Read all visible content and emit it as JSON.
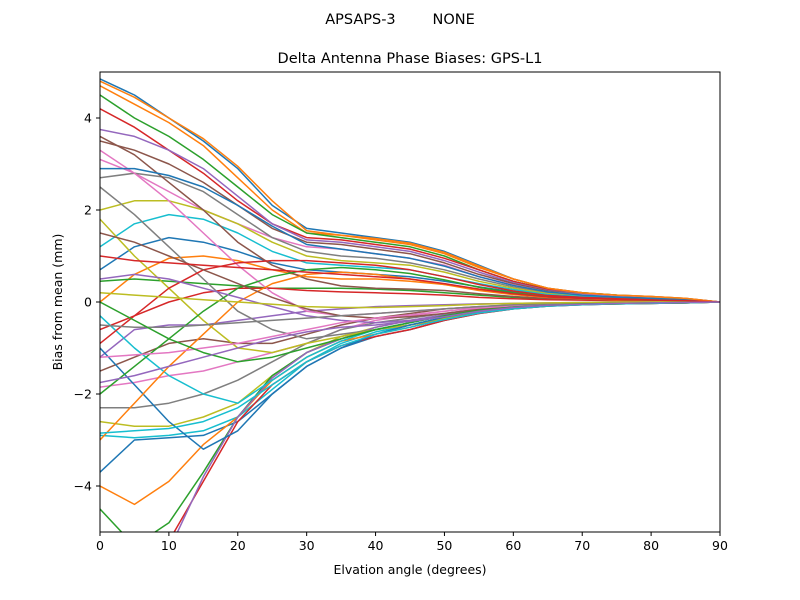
{
  "figure": {
    "suptitle": "APSAPS-3        NONE"
  },
  "chart_data": {
    "type": "line",
    "title": "Delta Antenna Phase Biases: GPS-L1",
    "xlabel": "Elvation angle (degrees)",
    "ylabel": "Bias from mean (mm)",
    "xlim": [
      0,
      90
    ],
    "ylim": [
      -5,
      5
    ],
    "x_ticks": [
      0,
      10,
      20,
      30,
      40,
      50,
      60,
      70,
      80,
      90
    ],
    "y_ticks": [
      -4,
      -2,
      0,
      2,
      4
    ],
    "x_tick_labels": [
      "0",
      "10",
      "20",
      "30",
      "40",
      "50",
      "60",
      "70",
      "80",
      "90"
    ],
    "y_tick_labels": [
      "−4",
      "−2",
      "0",
      "2",
      "4"
    ],
    "grid": false,
    "legend": "none",
    "colors": [
      "#1f77b4",
      "#ff7f0e",
      "#2ca02c",
      "#d62728",
      "#9467bd",
      "#8c564b",
      "#e377c2",
      "#7f7f7f",
      "#bcbd22",
      "#17becf"
    ],
    "x": [
      0,
      5,
      10,
      15,
      20,
      25,
      30,
      35,
      40,
      45,
      50,
      55,
      60,
      65,
      70,
      75,
      80,
      85,
      90
    ],
    "series": [
      {
        "values": [
          4.85,
          4.5,
          4.0,
          3.5,
          2.9,
          2.1,
          1.6,
          1.5,
          1.4,
          1.3,
          1.1,
          0.8,
          0.5,
          0.3,
          0.2,
          0.15,
          0.12,
          0.08,
          0
        ]
      },
      {
        "values": [
          4.7,
          4.3,
          3.9,
          3.4,
          2.7,
          2.0,
          1.5,
          1.45,
          1.35,
          1.25,
          1.05,
          0.75,
          0.5,
          0.3,
          0.2,
          0.15,
          0.12,
          0.08,
          0
        ]
      },
      {
        "values": [
          4.5,
          4.0,
          3.6,
          3.1,
          2.5,
          1.9,
          1.5,
          1.4,
          1.3,
          1.2,
          1.0,
          0.7,
          0.45,
          0.28,
          0.2,
          0.15,
          0.1,
          0.07,
          0
        ]
      },
      {
        "values": [
          4.2,
          3.8,
          3.3,
          2.8,
          2.2,
          1.7,
          1.4,
          1.35,
          1.25,
          1.15,
          0.95,
          0.7,
          0.45,
          0.27,
          0.18,
          0.14,
          0.1,
          0.07,
          0
        ]
      },
      {
        "values": [
          3.75,
          3.6,
          3.3,
          2.9,
          2.3,
          1.7,
          1.35,
          1.3,
          1.2,
          1.1,
          0.9,
          0.65,
          0.42,
          0.25,
          0.18,
          0.13,
          0.1,
          0.07,
          0
        ]
      },
      {
        "values": [
          3.5,
          3.3,
          3.0,
          2.6,
          2.1,
          1.6,
          1.3,
          1.25,
          1.15,
          1.05,
          0.85,
          0.6,
          0.4,
          0.24,
          0.17,
          0.13,
          0.1,
          0.06,
          0
        ]
      },
      {
        "values": [
          3.1,
          2.8,
          2.4,
          2.0,
          1.7,
          1.4,
          1.2,
          1.15,
          1.05,
          0.95,
          0.8,
          0.55,
          0.37,
          0.22,
          0.16,
          0.12,
          0.09,
          0.06,
          0
        ]
      },
      {
        "values": [
          2.7,
          2.8,
          2.7,
          2.4,
          1.9,
          1.4,
          1.1,
          1.0,
          0.95,
          0.85,
          0.7,
          0.5,
          0.33,
          0.2,
          0.14,
          0.11,
          0.08,
          0.05,
          0
        ]
      },
      {
        "values": [
          2.0,
          2.2,
          2.2,
          2.0,
          1.7,
          1.3,
          1.0,
          0.9,
          0.85,
          0.8,
          0.65,
          0.45,
          0.3,
          0.18,
          0.13,
          0.1,
          0.08,
          0.05,
          0
        ]
      },
      {
        "values": [
          1.2,
          1.7,
          1.9,
          1.8,
          1.5,
          1.1,
          0.85,
          0.8,
          0.75,
          0.7,
          0.55,
          0.4,
          0.27,
          0.16,
          0.12,
          0.09,
          0.07,
          0.05,
          0
        ]
      },
      {
        "values": [
          0.7,
          1.2,
          1.4,
          1.3,
          1.1,
          0.85,
          0.7,
          0.65,
          0.6,
          0.55,
          0.45,
          0.33,
          0.22,
          0.14,
          0.1,
          0.08,
          0.06,
          0.04,
          0
        ]
      },
      {
        "values": [
          0.0,
          0.6,
          0.95,
          1.0,
          0.9,
          0.7,
          0.55,
          0.5,
          0.5,
          0.45,
          0.38,
          0.28,
          0.2,
          0.12,
          0.09,
          0.07,
          0.05,
          0.03,
          0
        ]
      },
      {
        "values": [
          0.45,
          0.5,
          0.45,
          0.4,
          0.35,
          0.3,
          0.3,
          0.3,
          0.28,
          0.25,
          0.2,
          0.15,
          0.1,
          0.07,
          0.05,
          0.04,
          0.03,
          0.02,
          0
        ]
      },
      {
        "values": [
          -0.6,
          -0.3,
          0.0,
          0.2,
          0.3,
          0.3,
          0.25,
          0.22,
          0.2,
          0.18,
          0.15,
          0.1,
          0.07,
          0.05,
          0.04,
          0.03,
          0.02,
          0.01,
          0
        ]
      },
      {
        "values": [
          -1.2,
          -0.6,
          -0.5,
          -0.5,
          -0.4,
          -0.3,
          -0.2,
          -0.15,
          -0.1,
          -0.08,
          -0.06,
          -0.04,
          -0.03,
          -0.02,
          -0.01,
          0.0,
          0.0,
          0.0,
          0
        ]
      },
      {
        "values": [
          -1.5,
          -1.2,
          -0.9,
          -0.8,
          -0.9,
          -0.9,
          -0.7,
          -0.5,
          -0.35,
          -0.25,
          -0.15,
          -0.1,
          -0.07,
          -0.05,
          -0.03,
          -0.02,
          -0.01,
          0.0,
          0
        ]
      },
      {
        "values": [
          -1.85,
          -1.75,
          -1.6,
          -1.5,
          -1.3,
          -1.1,
          -0.9,
          -0.6,
          -0.4,
          -0.3,
          -0.2,
          -0.12,
          -0.08,
          -0.05,
          -0.03,
          -0.02,
          -0.01,
          0.0,
          0
        ]
      },
      {
        "values": [
          -2.3,
          -2.3,
          -2.2,
          -2.0,
          -1.7,
          -1.3,
          -0.9,
          -0.6,
          -0.45,
          -0.35,
          -0.25,
          -0.15,
          -0.1,
          -0.06,
          -0.04,
          -0.03,
          -0.02,
          -0.01,
          0
        ]
      },
      {
        "values": [
          -2.6,
          -2.7,
          -2.7,
          -2.5,
          -2.2,
          -1.6,
          -1.1,
          -0.75,
          -0.55,
          -0.4,
          -0.3,
          -0.18,
          -0.12,
          -0.07,
          -0.05,
          -0.03,
          -0.02,
          -0.01,
          0
        ]
      },
      {
        "values": [
          -2.9,
          -2.95,
          -2.9,
          -2.8,
          -2.5,
          -1.9,
          -1.3,
          -0.9,
          -0.65,
          -0.5,
          -0.35,
          -0.2,
          -0.13,
          -0.08,
          -0.05,
          -0.04,
          -0.03,
          -0.02,
          0
        ]
      },
      {
        "values": [
          -3.7,
          -3.0,
          -2.95,
          -2.9,
          -2.6,
          -2.0,
          -1.4,
          -1.0,
          -0.75,
          -0.6,
          -0.4,
          -0.25,
          -0.15,
          -0.09,
          -0.06,
          -0.04,
          -0.03,
          -0.02,
          0
        ]
      },
      {
        "values": [
          -4.0,
          -4.4,
          -3.9,
          -3.1,
          -2.5,
          -1.7,
          -1.2,
          -0.85,
          -0.7,
          -0.55,
          -0.35,
          -0.22,
          -0.14,
          -0.08,
          -0.05,
          -0.04,
          -0.03,
          -0.02,
          0
        ]
      },
      {
        "values": [
          -4.5,
          -5.3,
          -4.8,
          -3.7,
          -2.5,
          -1.6,
          -1.1,
          -0.8,
          -0.6,
          -0.45,
          -0.3,
          -0.2,
          -0.12,
          -0.07,
          -0.05,
          -0.04,
          -0.03,
          -0.02,
          0
        ]
      },
      {
        "values": [
          -5.3,
          -5.6,
          -5.2,
          -3.9,
          -2.6,
          -1.8,
          -1.3,
          -0.95,
          -0.75,
          -0.6,
          -0.4,
          -0.25,
          -0.15,
          -0.09,
          -0.06,
          -0.04,
          -0.03,
          -0.02,
          0
        ]
      },
      {
        "values": [
          -6.0,
          -6.1,
          -5.4,
          -3.8,
          -2.5,
          -1.65,
          -1.1,
          -0.8,
          -0.55,
          -0.4,
          -0.28,
          -0.18,
          -0.11,
          -0.07,
          -0.05,
          -0.03,
          -0.02,
          -0.01,
          0
        ]
      },
      {
        "values": [
          3.6,
          3.2,
          2.6,
          2.0,
          1.3,
          0.8,
          0.5,
          0.35,
          0.3,
          0.28,
          0.25,
          0.18,
          0.12,
          0.08,
          0.06,
          0.05,
          0.04,
          0.02,
          0
        ]
      },
      {
        "values": [
          3.3,
          2.8,
          2.2,
          1.5,
          0.8,
          0.2,
          -0.2,
          -0.3,
          -0.25,
          -0.2,
          -0.15,
          -0.1,
          -0.07,
          -0.04,
          -0.02,
          -0.01,
          0.0,
          0.0,
          0
        ]
      },
      {
        "values": [
          2.5,
          1.9,
          1.2,
          0.5,
          -0.2,
          -0.6,
          -0.8,
          -0.7,
          -0.6,
          -0.5,
          -0.35,
          -0.22,
          -0.14,
          -0.08,
          -0.05,
          -0.03,
          -0.02,
          -0.01,
          0
        ]
      },
      {
        "values": [
          1.8,
          1.0,
          0.3,
          -0.4,
          -1.0,
          -1.1,
          -0.9,
          -0.75,
          -0.6,
          -0.5,
          -0.35,
          -0.2,
          -0.13,
          -0.08,
          -0.05,
          -0.03,
          -0.02,
          -0.01,
          0
        ]
      },
      {
        "values": [
          -0.3,
          -1.0,
          -1.6,
          -2.0,
          -2.2,
          -1.7,
          -1.2,
          -0.85,
          -0.6,
          -0.45,
          -0.3,
          -0.18,
          -0.11,
          -0.07,
          -0.04,
          -0.03,
          -0.02,
          -0.01,
          0
        ]
      },
      {
        "values": [
          -1.0,
          -1.8,
          -2.6,
          -3.2,
          -2.8,
          -2.0,
          -1.4,
          -1.0,
          -0.7,
          -0.5,
          -0.33,
          -0.2,
          -0.12,
          -0.07,
          -0.05,
          -0.03,
          -0.02,
          -0.01,
          0
        ]
      },
      {
        "values": [
          -3.0,
          -2.2,
          -1.4,
          -0.7,
          0.0,
          0.4,
          0.6,
          0.65,
          0.6,
          0.5,
          0.38,
          0.25,
          0.16,
          0.1,
          0.07,
          0.05,
          0.04,
          0.02,
          0
        ]
      },
      {
        "values": [
          -2.0,
          -1.4,
          -0.8,
          -0.2,
          0.3,
          0.55,
          0.7,
          0.75,
          0.7,
          0.62,
          0.48,
          0.32,
          0.2,
          0.12,
          0.08,
          0.06,
          0.04,
          0.03,
          0
        ]
      },
      {
        "values": [
          -0.9,
          -0.3,
          0.3,
          0.7,
          0.85,
          0.9,
          0.9,
          0.85,
          0.8,
          0.7,
          0.55,
          0.38,
          0.24,
          0.14,
          0.1,
          0.07,
          0.05,
          0.03,
          0
        ]
      },
      {
        "values": [
          0.5,
          0.6,
          0.5,
          0.3,
          0.1,
          -0.1,
          -0.3,
          -0.4,
          -0.45,
          -0.4,
          -0.3,
          -0.2,
          -0.12,
          -0.07,
          -0.04,
          -0.03,
          -0.02,
          -0.01,
          0
        ]
      },
      {
        "values": [
          1.5,
          1.3,
          1.0,
          0.7,
          0.4,
          0.1,
          -0.15,
          -0.3,
          -0.35,
          -0.32,
          -0.25,
          -0.16,
          -0.1,
          -0.06,
          -0.04,
          -0.02,
          -0.01,
          0.0,
          0
        ]
      },
      {
        "values": [
          -1.2,
          -1.15,
          -1.1,
          -1.0,
          -0.9,
          -0.75,
          -0.6,
          -0.45,
          -0.35,
          -0.28,
          -0.2,
          -0.13,
          -0.08,
          -0.05,
          -0.03,
          -0.02,
          -0.01,
          0.0,
          0
        ]
      },
      {
        "values": [
          -0.5,
          -0.55,
          -0.55,
          -0.5,
          -0.45,
          -0.4,
          -0.35,
          -0.3,
          -0.25,
          -0.2,
          -0.15,
          -0.1,
          -0.06,
          -0.04,
          -0.02,
          -0.01,
          0.0,
          0.0,
          0
        ]
      },
      {
        "values": [
          0.2,
          0.15,
          0.1,
          0.05,
          0.0,
          -0.05,
          -0.1,
          -0.12,
          -0.12,
          -0.1,
          -0.08,
          -0.05,
          -0.03,
          -0.02,
          -0.01,
          0.0,
          0.0,
          0.0,
          0
        ]
      },
      {
        "values": [
          -2.85,
          -2.8,
          -2.75,
          -2.6,
          -2.3,
          -1.8,
          -1.3,
          -0.95,
          -0.7,
          -0.55,
          -0.38,
          -0.24,
          -0.15,
          -0.09,
          -0.06,
          -0.04,
          -0.03,
          -0.02,
          0
        ]
      },
      {
        "values": [
          2.9,
          2.9,
          2.75,
          2.5,
          2.1,
          1.65,
          1.25,
          1.15,
          1.05,
          0.95,
          0.78,
          0.55,
          0.36,
          0.22,
          0.15,
          0.11,
          0.08,
          0.05,
          0
        ]
      },
      {
        "values": [
          4.8,
          4.45,
          4.0,
          3.55,
          2.95,
          2.2,
          1.55,
          1.45,
          1.38,
          1.28,
          1.08,
          0.78,
          0.5,
          0.3,
          0.2,
          0.15,
          0.12,
          0.08,
          0
        ]
      },
      {
        "values": [
          0.0,
          -0.4,
          -0.8,
          -1.1,
          -1.3,
          -1.2,
          -1.0,
          -0.8,
          -0.6,
          -0.45,
          -0.3,
          -0.18,
          -0.11,
          -0.07,
          -0.04,
          -0.03,
          -0.02,
          -0.01,
          0
        ]
      },
      {
        "values": [
          1.0,
          0.9,
          0.85,
          0.8,
          0.75,
          0.7,
          0.65,
          0.6,
          0.55,
          0.5,
          0.4,
          0.28,
          0.18,
          0.11,
          0.08,
          0.06,
          0.04,
          0.03,
          0
        ]
      },
      {
        "values": [
          -1.75,
          -1.6,
          -1.4,
          -1.2,
          -1.0,
          -0.8,
          -0.65,
          -0.55,
          -0.5,
          -0.42,
          -0.32,
          -0.2,
          -0.12,
          -0.07,
          -0.05,
          -0.03,
          -0.02,
          -0.01,
          0
        ]
      }
    ]
  }
}
